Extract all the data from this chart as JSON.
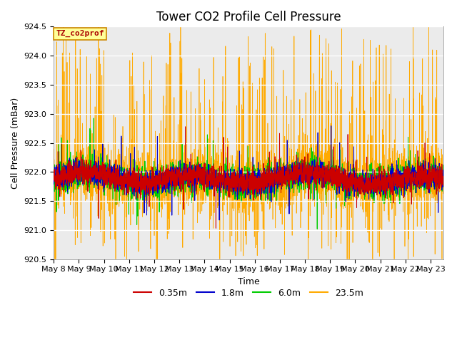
{
  "title": "Tower CO2 Profile Cell Pressure",
  "xlabel": "Time",
  "ylabel": "Cell Pressure (mBar)",
  "annotation": "TZ_co2prof",
  "ylim": [
    920.5,
    924.5
  ],
  "xlim_days": [
    0,
    15.5
  ],
  "date_labels": [
    "May 8",
    "May 9",
    "May 10",
    "May 11",
    "May 12",
    "May 13",
    "May 14",
    "May 15",
    "May 16",
    "May 17",
    "May 18",
    "May 19",
    "May 20",
    "May 21",
    "May 22",
    "May 23"
  ],
  "colors": {
    "0.35m": "#cc0000",
    "1.8m": "#0000cc",
    "6.0m": "#00cc00",
    "23.5m": "#ffaa00"
  },
  "legend_labels": [
    "0.35m",
    "1.8m",
    "6.0m",
    "23.5m"
  ],
  "bg_color": "#ebebeb",
  "annotation_bg": "#ffff99",
  "annotation_fg": "#aa0000",
  "title_fontsize": 12,
  "label_fontsize": 9,
  "tick_fontsize": 8,
  "legend_fontsize": 9
}
